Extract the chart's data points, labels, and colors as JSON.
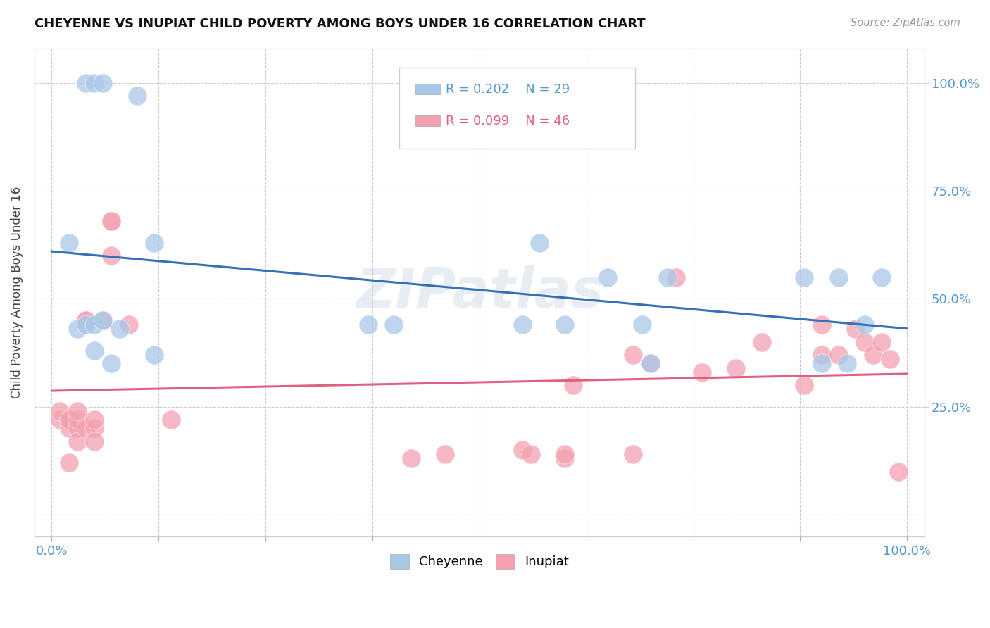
{
  "title": "CHEYENNE VS INUPIAT CHILD POVERTY AMONG BOYS UNDER 16 CORRELATION CHART",
  "source": "Source: ZipAtlas.com",
  "ylabel": "Child Poverty Among Boys Under 16",
  "watermark": "ZIPatlas",
  "legend_r1": "R = 0.202",
  "legend_n1": "N = 29",
  "legend_r2": "R = 0.099",
  "legend_n2": "N = 46",
  "cheyenne_color": "#a8c8e8",
  "inupiat_color": "#f4a0b0",
  "trendline_cheyenne_color": "#3570b8",
  "trendline_inupiat_color": "#e06080",
  "background_color": "#ffffff",
  "grid_color": "#cccccc",
  "axis_label_color": "#5599cc",
  "legend_text_cheyenne": "#5599cc",
  "legend_text_inupiat": "#e06080",
  "cheyenne_x": [
    0.04,
    0.05,
    0.06,
    0.1,
    0.02,
    0.03,
    0.04,
    0.05,
    0.05,
    0.06,
    0.07,
    0.08,
    0.12,
    0.12,
    0.37,
    0.4,
    0.55,
    0.57,
    0.6,
    0.65,
    0.69,
    0.7,
    0.72,
    0.88,
    0.9,
    0.92,
    0.93,
    0.95,
    0.97
  ],
  "cheyenne_y": [
    1.0,
    1.0,
    1.0,
    0.97,
    0.63,
    0.43,
    0.44,
    0.44,
    0.38,
    0.45,
    0.35,
    0.43,
    0.37,
    0.63,
    0.44,
    0.44,
    0.44,
    0.63,
    0.44,
    0.55,
    0.44,
    0.35,
    0.55,
    0.55,
    0.35,
    0.55,
    0.35,
    0.44,
    0.55
  ],
  "inupiat_x": [
    0.01,
    0.01,
    0.02,
    0.02,
    0.02,
    0.02,
    0.03,
    0.03,
    0.03,
    0.03,
    0.04,
    0.04,
    0.04,
    0.05,
    0.05,
    0.05,
    0.06,
    0.07,
    0.07,
    0.07,
    0.09,
    0.14,
    0.42,
    0.46,
    0.55,
    0.56,
    0.6,
    0.6,
    0.61,
    0.68,
    0.68,
    0.7,
    0.73,
    0.76,
    0.8,
    0.83,
    0.88,
    0.9,
    0.9,
    0.92,
    0.94,
    0.95,
    0.96,
    0.97,
    0.98,
    0.99
  ],
  "inupiat_y": [
    0.22,
    0.24,
    0.22,
    0.2,
    0.22,
    0.12,
    0.2,
    0.22,
    0.24,
    0.17,
    0.45,
    0.45,
    0.2,
    0.2,
    0.22,
    0.17,
    0.45,
    0.68,
    0.68,
    0.6,
    0.44,
    0.22,
    0.13,
    0.14,
    0.15,
    0.14,
    0.13,
    0.14,
    0.3,
    0.14,
    0.37,
    0.35,
    0.55,
    0.33,
    0.34,
    0.4,
    0.3,
    0.44,
    0.37,
    0.37,
    0.43,
    0.4,
    0.37,
    0.4,
    0.36,
    0.1
  ],
  "xlim": [
    -0.02,
    1.02
  ],
  "ylim": [
    -0.05,
    1.08
  ],
  "xticks": [
    0.0,
    0.125,
    0.25,
    0.375,
    0.5,
    0.625,
    0.75,
    0.875,
    1.0
  ],
  "yticks": [
    0.0,
    0.25,
    0.5,
    0.75,
    1.0
  ],
  "xticklabels": [
    "0.0%",
    "",
    "",
    "",
    "",
    "",
    "",
    "",
    "100.0%"
  ],
  "yticklabels_right": [
    "",
    "25.0%",
    "50.0%",
    "75.0%",
    "100.0%"
  ]
}
